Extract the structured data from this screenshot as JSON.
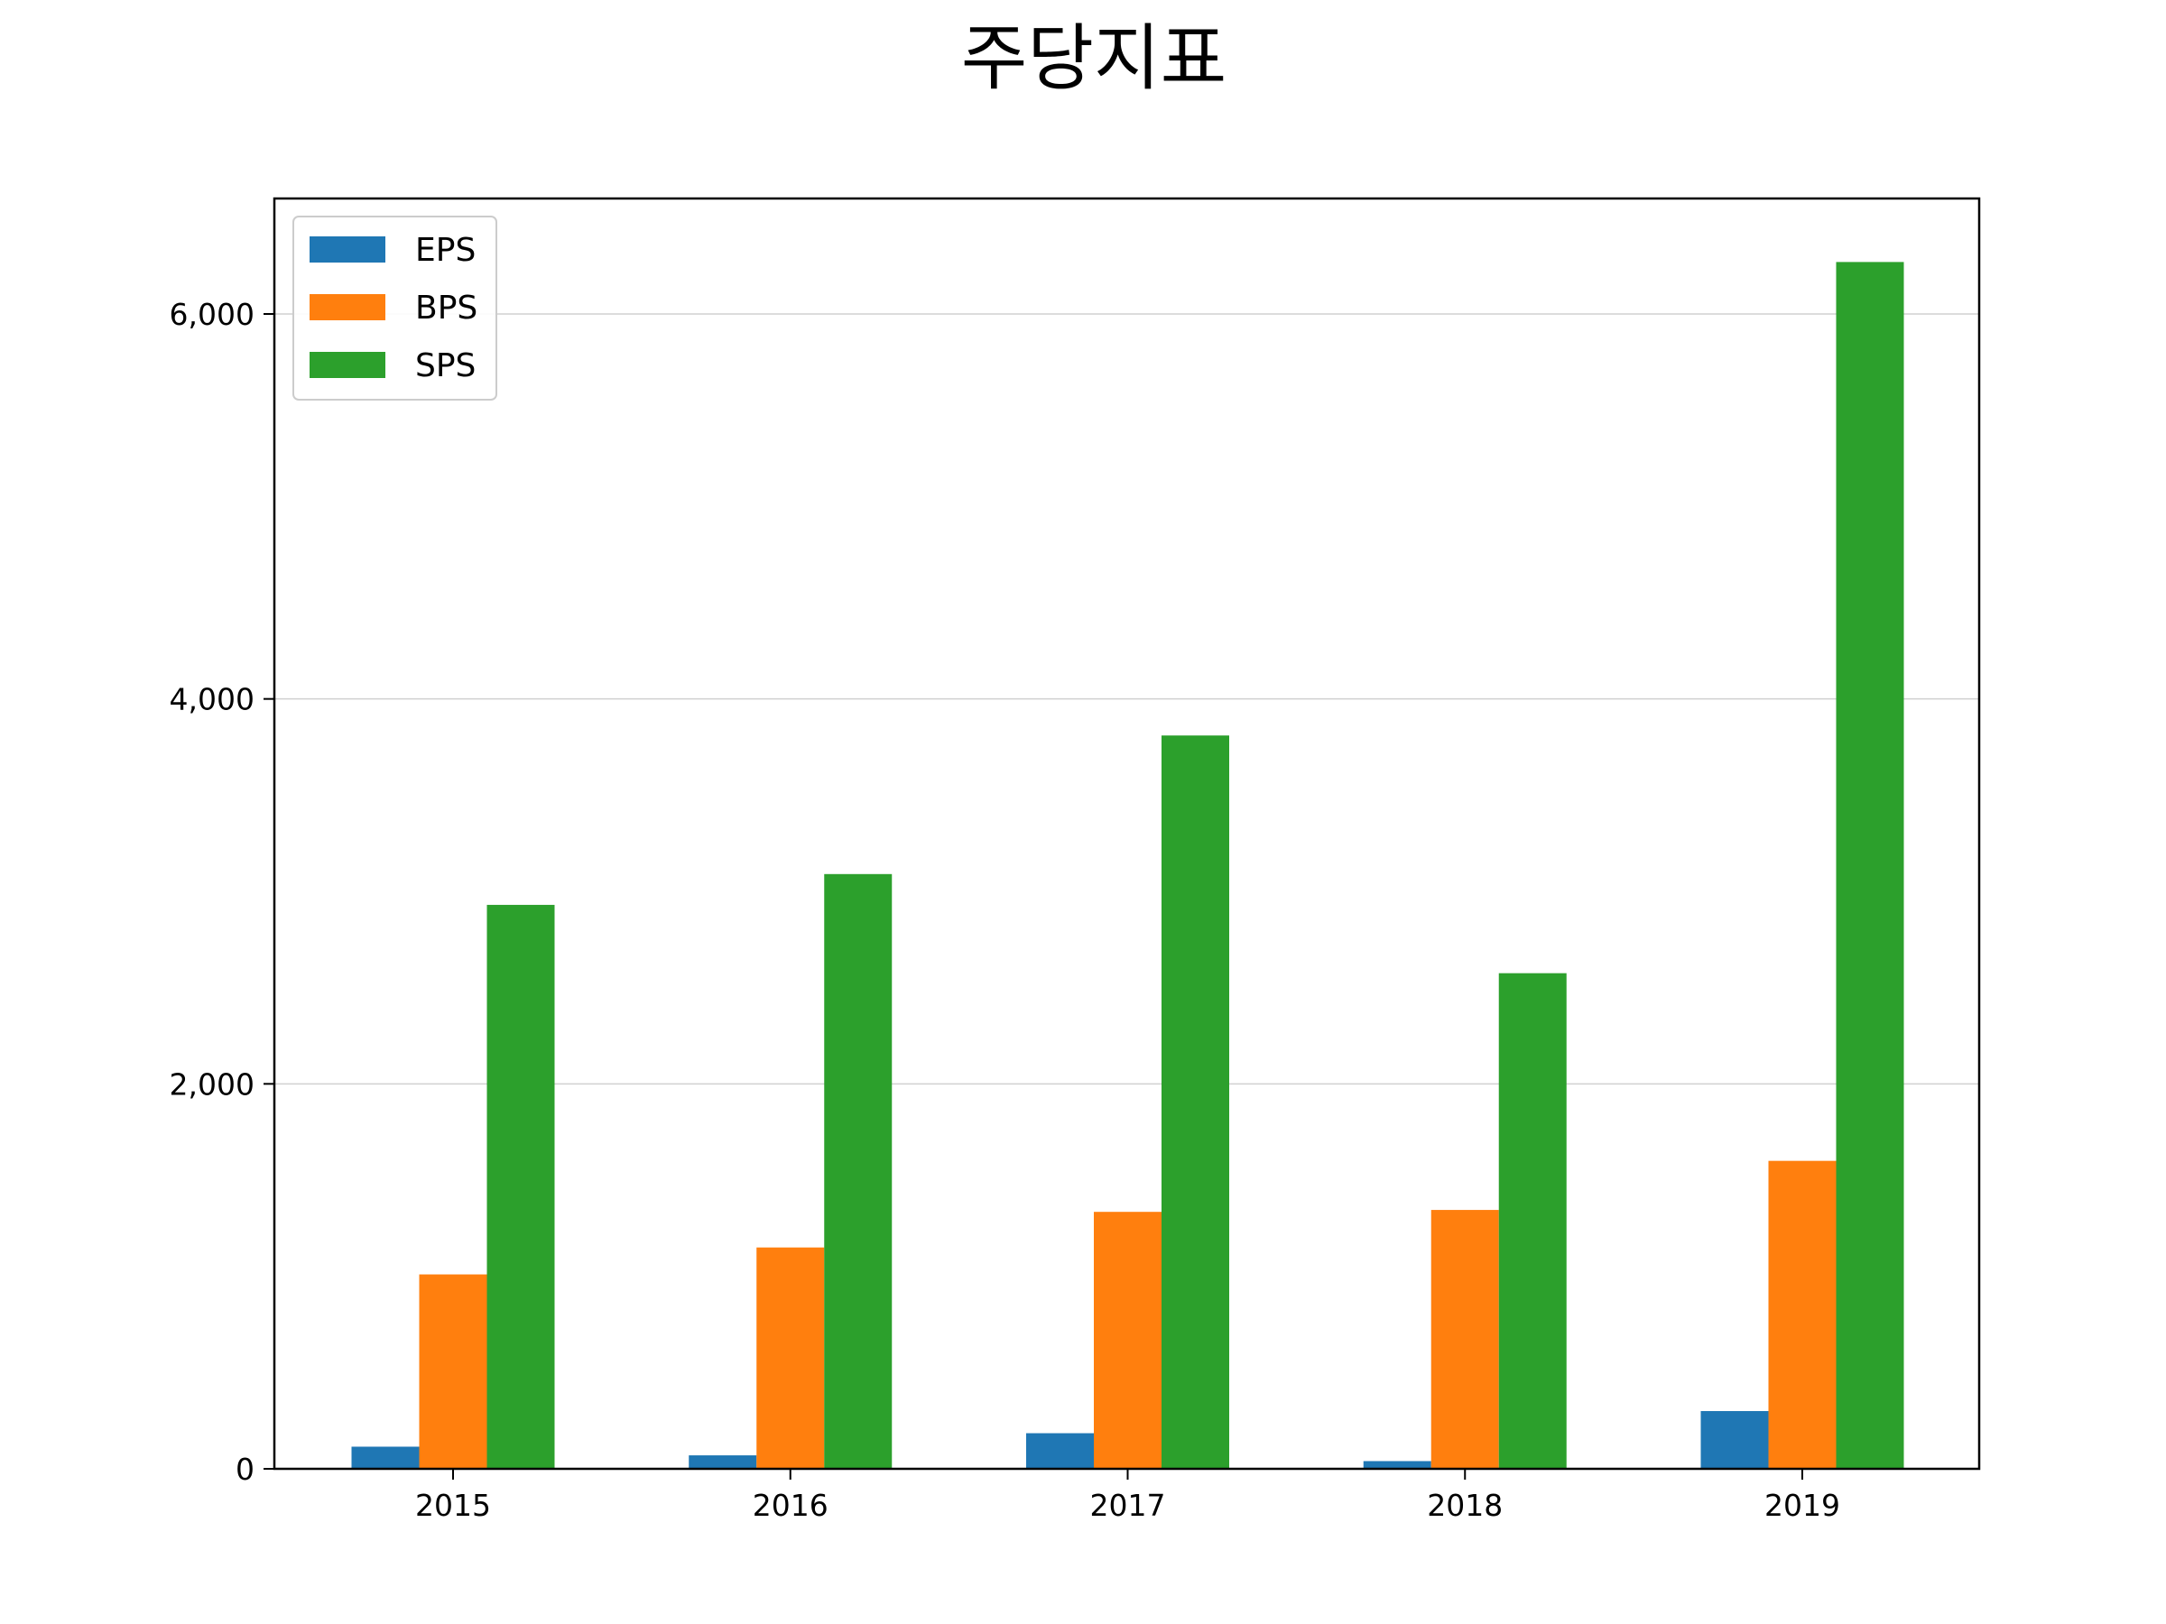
{
  "chart_data": {
    "type": "bar",
    "title": "주당지표",
    "xlabel": "",
    "ylabel": "",
    "categories": [
      "2015",
      "2016",
      "2017",
      "2018",
      "2019"
    ],
    "series": [
      {
        "name": "EPS",
        "color": "#1f77b4",
        "values": [
          115,
          70,
          185,
          40,
          300
        ]
      },
      {
        "name": "BPS",
        "color": "#ff7f0e",
        "values": [
          1010,
          1150,
          1335,
          1345,
          1600
        ]
      },
      {
        "name": "SPS",
        "color": "#2ca02c",
        "values": [
          2930,
          3090,
          3810,
          2575,
          6270
        ]
      }
    ],
    "ylim": [
      0,
      6600
    ],
    "yticks": [
      0,
      2000,
      4000,
      6000
    ],
    "ytick_labels": [
      "0",
      "2,000",
      "4,000",
      "6,000"
    ],
    "grid": "horizontal",
    "legend_position": "top-left"
  }
}
